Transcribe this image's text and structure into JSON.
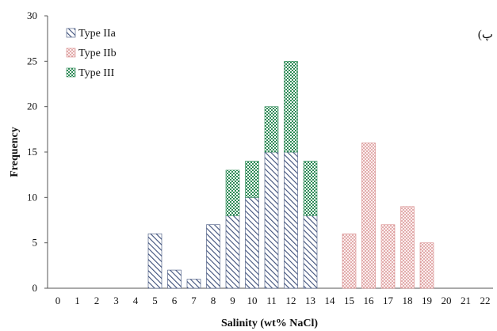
{
  "chart_data": {
    "type": "bar",
    "stacked": true,
    "panel_label": "(پ",
    "xlabel": "Salinity (wt% NaCl)",
    "ylabel": "Frequency",
    "x_ticks": [
      "0",
      "1",
      "2",
      "3",
      "4",
      "5",
      "6",
      "7",
      "8",
      "9",
      "10",
      "11",
      "12",
      "13",
      "14",
      "15",
      "16",
      "17",
      "18",
      "19",
      "20",
      "21",
      "22"
    ],
    "y_ticks": [
      "0",
      "5",
      "10",
      "15",
      "20",
      "25",
      "30"
    ],
    "ylim": [
      0,
      30
    ],
    "grid": false,
    "legend_position": "top-left",
    "series": [
      {
        "name": "Type IIa",
        "pattern": "diagonal-hatch",
        "color": "#3d4f7a",
        "points": [
          {
            "x": 5,
            "y": 6
          },
          {
            "x": 6,
            "y": 2
          },
          {
            "x": 7,
            "y": 1
          },
          {
            "x": 8,
            "y": 7
          },
          {
            "x": 9,
            "y": 8
          },
          {
            "x": 10,
            "y": 10
          },
          {
            "x": 11,
            "y": 15
          },
          {
            "x": 12,
            "y": 15
          },
          {
            "x": 13,
            "y": 8
          }
        ]
      },
      {
        "name": "Type IIb",
        "pattern": "dotted",
        "color": "#d98c8c",
        "points": [
          {
            "x": 15,
            "y": 6
          },
          {
            "x": 16,
            "y": 16
          },
          {
            "x": 17,
            "y": 7
          },
          {
            "x": 18,
            "y": 9
          },
          {
            "x": 19,
            "y": 5
          }
        ]
      },
      {
        "name": "Type III",
        "pattern": "checker",
        "color": "#2e8b57",
        "points": [
          {
            "x": 9,
            "y": 5
          },
          {
            "x": 10,
            "y": 4
          },
          {
            "x": 11,
            "y": 5
          },
          {
            "x": 12,
            "y": 10
          },
          {
            "x": 13,
            "y": 6
          }
        ]
      }
    ]
  }
}
